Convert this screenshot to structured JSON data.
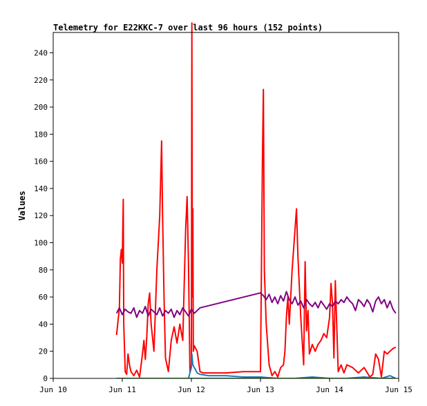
{
  "chart_data": {
    "type": "line",
    "title": "Telemetry for E22KKC-7 over last 96 hours (152 points)",
    "ylabel": "Values",
    "xlabel": "",
    "xlim": [
      "2024-06-10",
      "2024-06-15"
    ],
    "ylim": [
      0,
      255
    ],
    "x_tick_labels": [
      "Jun 10",
      "Jun 11",
      "Jun 12",
      "Jun 13",
      "Jun 14",
      "Jun 15"
    ],
    "x_ticks": [
      "2024-06-10",
      "2024-06-11",
      "2024-06-12",
      "2024-06-13",
      "2024-06-14",
      "2024-06-15"
    ],
    "y_tick_labels": [
      "0",
      "20",
      "40",
      "60",
      "80",
      "100",
      "120",
      "140",
      "160",
      "180",
      "200",
      "220",
      "240"
    ],
    "y_ticks": [
      0,
      20,
      40,
      60,
      80,
      100,
      120,
      140,
      160,
      180,
      200,
      220,
      240
    ],
    "grid": false,
    "legend": "none",
    "series": [
      {
        "color": "#ff0000",
        "points": [
          [
            "2024-06-10 22:00",
            32
          ],
          [
            "2024-06-10 23:00",
            52
          ],
          [
            "2024-06-10 23:20",
            88
          ],
          [
            "2024-06-10 23:40",
            95
          ],
          [
            "2024-06-11 00:00",
            85
          ],
          [
            "2024-06-11 00:10",
            110
          ],
          [
            "2024-06-11 00:20",
            132
          ],
          [
            "2024-06-11 00:30",
            40
          ],
          [
            "2024-06-11 01:00",
            5
          ],
          [
            "2024-06-11 01:30",
            3
          ],
          [
            "2024-06-11 02:00",
            18
          ],
          [
            "2024-06-11 02:30",
            10
          ],
          [
            "2024-06-11 03:00",
            5
          ],
          [
            "2024-06-11 04:00",
            2
          ],
          [
            "2024-06-11 05:00",
            6
          ],
          [
            "2024-06-11 06:00",
            1
          ],
          [
            "2024-06-11 07:00",
            18
          ],
          [
            "2024-06-11 07:30",
            28
          ],
          [
            "2024-06-11 08:00",
            14
          ],
          [
            "2024-06-11 08:30",
            30
          ],
          [
            "2024-06-11 09:00",
            55
          ],
          [
            "2024-06-11 09:30",
            63
          ],
          [
            "2024-06-11 10:00",
            40
          ],
          [
            "2024-06-11 11:00",
            20
          ],
          [
            "2024-06-11 12:00",
            80
          ],
          [
            "2024-06-11 13:00",
            120
          ],
          [
            "2024-06-11 13:40",
            175
          ],
          [
            "2024-06-11 14:00",
            120
          ],
          [
            "2024-06-11 14:30",
            60
          ],
          [
            "2024-06-11 15:00",
            15
          ],
          [
            "2024-06-11 16:00",
            5
          ],
          [
            "2024-06-11 17:00",
            28
          ],
          [
            "2024-06-11 18:00",
            38
          ],
          [
            "2024-06-11 19:00",
            26
          ],
          [
            "2024-06-11 20:00",
            40
          ],
          [
            "2024-06-11 21:00",
            28
          ],
          [
            "2024-06-11 22:00",
            110
          ],
          [
            "2024-06-11 22:30",
            134
          ],
          [
            "2024-06-11 23:00",
            85
          ],
          [
            "2024-06-11 23:30",
            5
          ],
          [
            "2024-06-12 00:00",
            10
          ],
          [
            "2024-06-12 00:10",
            262
          ],
          [
            "2024-06-12 00:20",
            60
          ],
          [
            "2024-06-12 00:30",
            125
          ],
          [
            "2024-06-12 00:40",
            20
          ],
          [
            "2024-06-12 01:00",
            24
          ],
          [
            "2024-06-12 02:00",
            20
          ],
          [
            "2024-06-12 03:00",
            5
          ],
          [
            "2024-06-12 04:00",
            4
          ],
          [
            "2024-06-12 06:00",
            4
          ],
          [
            "2024-06-12 12:00",
            4
          ],
          [
            "2024-06-12 18:00",
            5
          ],
          [
            "2024-06-13 00:00",
            5
          ],
          [
            "2024-06-13 00:40",
            160
          ],
          [
            "2024-06-13 01:00",
            213
          ],
          [
            "2024-06-13 01:20",
            80
          ],
          [
            "2024-06-13 02:00",
            40
          ],
          [
            "2024-06-13 03:00",
            10
          ],
          [
            "2024-06-13 04:00",
            2
          ],
          [
            "2024-06-13 05:00",
            5
          ],
          [
            "2024-06-13 06:00",
            1
          ],
          [
            "2024-06-13 07:00",
            8
          ],
          [
            "2024-06-13 08:00",
            10
          ],
          [
            "2024-06-13 08:30",
            20
          ],
          [
            "2024-06-13 09:00",
            45
          ],
          [
            "2024-06-13 09:30",
            60
          ],
          [
            "2024-06-13 10:00",
            40
          ],
          [
            "2024-06-13 11:00",
            80
          ],
          [
            "2024-06-13 12:00",
            110
          ],
          [
            "2024-06-13 12:30",
            125
          ],
          [
            "2024-06-13 13:00",
            90
          ],
          [
            "2024-06-13 14:00",
            45
          ],
          [
            "2024-06-13 15:00",
            10
          ],
          [
            "2024-06-13 15:30",
            86
          ],
          [
            "2024-06-13 16:00",
            35
          ],
          [
            "2024-06-13 16:30",
            50
          ],
          [
            "2024-06-13 17:00",
            18
          ],
          [
            "2024-06-13 18:00",
            25
          ],
          [
            "2024-06-13 19:00",
            20
          ],
          [
            "2024-06-13 20:00",
            25
          ],
          [
            "2024-06-13 21:00",
            28
          ],
          [
            "2024-06-13 22:00",
            33
          ],
          [
            "2024-06-13 23:00",
            30
          ],
          [
            "2024-06-14 00:00",
            45
          ],
          [
            "2024-06-14 00:30",
            70
          ],
          [
            "2024-06-14 01:00",
            55
          ],
          [
            "2024-06-14 01:30",
            15
          ],
          [
            "2024-06-14 02:00",
            72
          ],
          [
            "2024-06-14 03:00",
            5
          ],
          [
            "2024-06-14 04:00",
            10
          ],
          [
            "2024-06-14 05:00",
            4
          ],
          [
            "2024-06-14 06:00",
            10
          ],
          [
            "2024-06-14 08:00",
            8
          ],
          [
            "2024-06-14 10:00",
            4
          ],
          [
            "2024-06-14 12:00",
            8
          ],
          [
            "2024-06-14 14:00",
            1
          ],
          [
            "2024-06-14 15:00",
            3
          ],
          [
            "2024-06-14 16:00",
            18
          ],
          [
            "2024-06-14 17:00",
            14
          ],
          [
            "2024-06-14 18:00",
            1
          ],
          [
            "2024-06-14 19:00",
            20
          ],
          [
            "2024-06-14 20:00",
            18
          ],
          [
            "2024-06-14 21:00",
            20
          ],
          [
            "2024-06-14 22:00",
            22
          ],
          [
            "2024-06-14 23:00",
            23
          ]
        ]
      },
      {
        "color": "#800080",
        "points": [
          [
            "2024-06-10 22:00",
            48
          ],
          [
            "2024-06-10 23:00",
            52
          ],
          [
            "2024-06-11 00:00",
            47
          ],
          [
            "2024-06-11 01:00",
            51
          ],
          [
            "2024-06-11 02:00",
            49
          ],
          [
            "2024-06-11 03:00",
            48
          ],
          [
            "2024-06-11 04:00",
            52
          ],
          [
            "2024-06-11 05:00",
            45
          ],
          [
            "2024-06-11 06:00",
            50
          ],
          [
            "2024-06-11 07:00",
            48
          ],
          [
            "2024-06-11 08:00",
            53
          ],
          [
            "2024-06-11 09:00",
            46
          ],
          [
            "2024-06-11 10:00",
            51
          ],
          [
            "2024-06-11 11:00",
            49
          ],
          [
            "2024-06-11 12:00",
            47
          ],
          [
            "2024-06-11 13:00",
            52
          ],
          [
            "2024-06-11 14:00",
            46
          ],
          [
            "2024-06-11 15:00",
            50
          ],
          [
            "2024-06-11 16:00",
            48
          ],
          [
            "2024-06-11 17:00",
            51
          ],
          [
            "2024-06-11 18:00",
            45
          ],
          [
            "2024-06-11 19:00",
            50
          ],
          [
            "2024-06-11 20:00",
            47
          ],
          [
            "2024-06-11 21:00",
            52
          ],
          [
            "2024-06-11 22:00",
            49
          ],
          [
            "2024-06-11 23:00",
            46
          ],
          [
            "2024-06-12 00:00",
            51
          ],
          [
            "2024-06-12 01:00",
            48
          ],
          [
            "2024-06-12 02:00",
            50
          ],
          [
            "2024-06-12 03:00",
            52
          ],
          [
            "2024-06-13 00:00",
            63
          ],
          [
            "2024-06-13 01:00",
            61
          ],
          [
            "2024-06-13 02:00",
            58
          ],
          [
            "2024-06-13 03:00",
            62
          ],
          [
            "2024-06-13 04:00",
            56
          ],
          [
            "2024-06-13 05:00",
            60
          ],
          [
            "2024-06-13 06:00",
            55
          ],
          [
            "2024-06-13 07:00",
            61
          ],
          [
            "2024-06-13 08:00",
            57
          ],
          [
            "2024-06-13 09:00",
            64
          ],
          [
            "2024-06-13 10:00",
            58
          ],
          [
            "2024-06-13 11:00",
            55
          ],
          [
            "2024-06-13 12:00",
            60
          ],
          [
            "2024-06-13 13:00",
            54
          ],
          [
            "2024-06-13 14:00",
            57
          ],
          [
            "2024-06-13 15:00",
            52
          ],
          [
            "2024-06-13 16:00",
            58
          ],
          [
            "2024-06-13 17:00",
            55
          ],
          [
            "2024-06-13 18:00",
            53
          ],
          [
            "2024-06-13 19:00",
            56
          ],
          [
            "2024-06-13 20:00",
            52
          ],
          [
            "2024-06-13 21:00",
            57
          ],
          [
            "2024-06-13 22:00",
            54
          ],
          [
            "2024-06-13 23:00",
            51
          ],
          [
            "2024-06-14 00:00",
            55
          ],
          [
            "2024-06-14 01:00",
            53
          ],
          [
            "2024-06-14 02:00",
            57
          ],
          [
            "2024-06-14 03:00",
            55
          ],
          [
            "2024-06-14 04:00",
            58
          ],
          [
            "2024-06-14 05:00",
            56
          ],
          [
            "2024-06-14 06:00",
            60
          ],
          [
            "2024-06-14 07:00",
            57
          ],
          [
            "2024-06-14 08:00",
            55
          ],
          [
            "2024-06-14 09:00",
            50
          ],
          [
            "2024-06-14 10:00",
            58
          ],
          [
            "2024-06-14 11:00",
            56
          ],
          [
            "2024-06-14 12:00",
            53
          ],
          [
            "2024-06-14 13:00",
            58
          ],
          [
            "2024-06-14 14:00",
            55
          ],
          [
            "2024-06-14 15:00",
            49
          ],
          [
            "2024-06-14 16:00",
            57
          ],
          [
            "2024-06-14 17:00",
            60
          ],
          [
            "2024-06-14 18:00",
            55
          ],
          [
            "2024-06-14 19:00",
            58
          ],
          [
            "2024-06-14 20:00",
            52
          ],
          [
            "2024-06-14 21:00",
            57
          ],
          [
            "2024-06-14 22:00",
            51
          ],
          [
            "2024-06-14 23:00",
            48
          ]
        ]
      },
      {
        "color": "#1f77b4",
        "points": [
          [
            "2024-06-10 22:00",
            0
          ],
          [
            "2024-06-11 12:00",
            0
          ],
          [
            "2024-06-11 23:00",
            0
          ],
          [
            "2024-06-12 00:00",
            8
          ],
          [
            "2024-06-12 00:10",
            18
          ],
          [
            "2024-06-12 00:30",
            10
          ],
          [
            "2024-06-12 01:00",
            8
          ],
          [
            "2024-06-12 01:30",
            6
          ],
          [
            "2024-06-12 02:00",
            4
          ],
          [
            "2024-06-12 03:00",
            3
          ],
          [
            "2024-06-12 06:00",
            2
          ],
          [
            "2024-06-12 12:00",
            2
          ],
          [
            "2024-06-12 18:00",
            1
          ],
          [
            "2024-06-13 00:00",
            1
          ],
          [
            "2024-06-13 06:00",
            0
          ],
          [
            "2024-06-13 12:00",
            0
          ],
          [
            "2024-06-13 18:00",
            1
          ],
          [
            "2024-06-14 00:00",
            0
          ],
          [
            "2024-06-14 06:00",
            0
          ],
          [
            "2024-06-14 12:00",
            1
          ],
          [
            "2024-06-14 18:00",
            0
          ],
          [
            "2024-06-14 21:00",
            2
          ],
          [
            "2024-06-14 23:00",
            0
          ]
        ]
      },
      {
        "color": "#2ca02c",
        "points": [
          [
            "2024-06-10 22:00",
            0
          ],
          [
            "2024-06-12 00:00",
            0
          ],
          [
            "2024-06-13 00:00",
            0
          ],
          [
            "2024-06-14 00:00",
            0
          ],
          [
            "2024-06-14 23:00",
            0
          ]
        ]
      }
    ]
  }
}
